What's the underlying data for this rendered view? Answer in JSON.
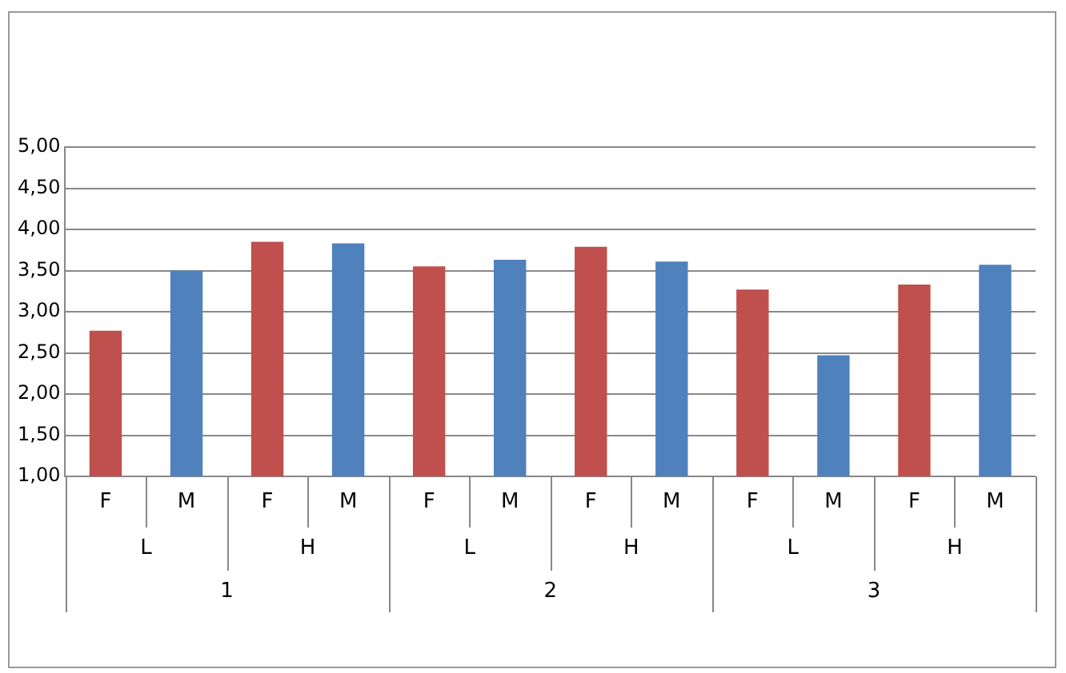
{
  "chart_data": {
    "type": "bar",
    "categories": [
      "F",
      "M",
      "F",
      "M",
      "F",
      "M",
      "F",
      "M",
      "F",
      "M",
      "F",
      "M"
    ],
    "values": [
      2.77,
      3.5,
      3.85,
      3.83,
      3.55,
      3.63,
      3.79,
      3.61,
      3.27,
      2.47,
      3.33,
      3.57
    ],
    "colors": [
      "#c0504d",
      "#4f81bd",
      "#c0504d",
      "#4f81bd",
      "#c0504d",
      "#4f81bd",
      "#c0504d",
      "#4f81bd",
      "#c0504d",
      "#4f81bd",
      "#c0504d",
      "#4f81bd"
    ],
    "annotations": [
      "L",
      "H",
      "L",
      "H",
      "L",
      "H",
      "1",
      "2",
      "3"
    ],
    "ylim": [
      1,
      5
    ],
    "yticks": [
      {
        "value": 1,
        "label": "1,00"
      },
      {
        "value": 1.5,
        "label": "1,50"
      },
      {
        "value": 2,
        "label": "2,00"
      },
      {
        "value": 2.5,
        "label": "2,50"
      },
      {
        "value": 3,
        "label": "3,00"
      },
      {
        "value": 3.5,
        "label": "3,50"
      },
      {
        "value": 4,
        "label": "4,00"
      },
      {
        "value": 4.5,
        "label": "4,50"
      },
      {
        "value": 5,
        "label": "5,00"
      }
    ],
    "grid": "y",
    "legend": false
  }
}
